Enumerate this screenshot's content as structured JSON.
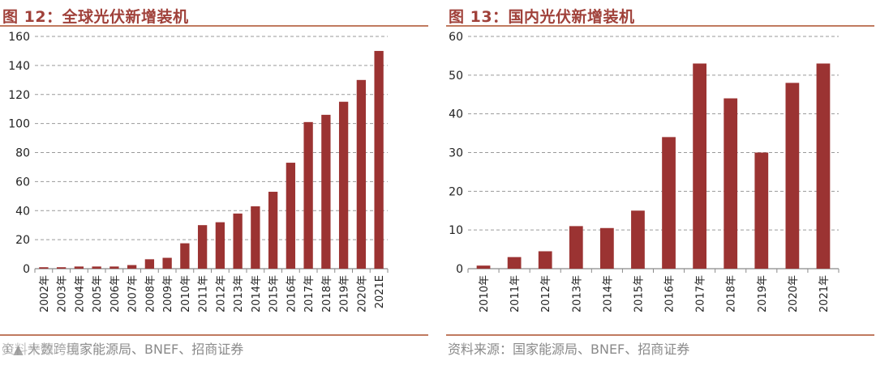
{
  "colors": {
    "bar": "#9b3332",
    "title": "#a0413a",
    "rule": "#c07a5f",
    "grid": "#9a9a9a",
    "source_text": "#8a8a8a"
  },
  "left": {
    "title": "图 12：全球光伏新增装机",
    "source": "资料来源：国家能源局、BNEF、招商证券",
    "watermark": "①▲ 大数跨境"
  },
  "right": {
    "title": "图 13：国内光伏新增装机",
    "source": "资料来源：国家能源局、BNEF、招商证券"
  },
  "chart_data": [
    {
      "type": "bar",
      "title": "全球光伏新增装机",
      "categories": [
        "2002年",
        "2003年",
        "2004年",
        "2005年",
        "2006年",
        "2007年",
        "2008年",
        "2009年",
        "2010年",
        "2011年",
        "2012年",
        "2013年",
        "2014年",
        "2015年",
        "2016年",
        "2017年",
        "2018年",
        "2019年",
        "2020年",
        "2021E"
      ],
      "values": [
        1,
        1,
        1.5,
        1.5,
        1.5,
        2.5,
        6.5,
        7.5,
        17.5,
        30,
        32,
        38,
        43,
        53,
        73,
        101,
        106,
        115,
        130,
        150
      ],
      "ylim": [
        0,
        160
      ],
      "yticks": [
        0,
        20,
        40,
        60,
        80,
        100,
        120,
        140,
        160
      ],
      "grid": true,
      "legend": "none"
    },
    {
      "type": "bar",
      "title": "国内光伏新增装机",
      "categories": [
        "2010年",
        "2011年",
        "2012年",
        "2013年",
        "2014年",
        "2015年",
        "2016年",
        "2017年",
        "2018年",
        "2019年",
        "2020年",
        "2021年"
      ],
      "values": [
        0.8,
        3,
        4.5,
        11,
        10.5,
        15,
        34,
        53,
        44,
        30,
        48,
        53
      ],
      "ylim": [
        0,
        60
      ],
      "yticks": [
        0,
        10,
        20,
        30,
        40,
        50,
        60
      ],
      "grid": true,
      "legend": "none"
    }
  ]
}
